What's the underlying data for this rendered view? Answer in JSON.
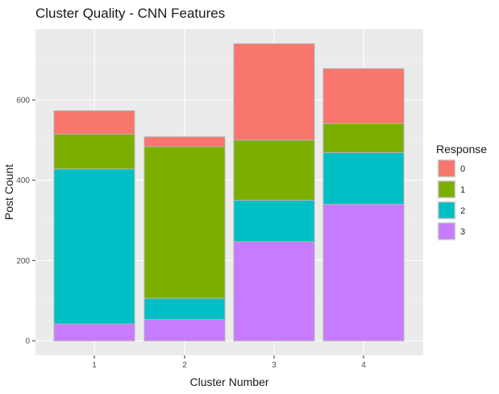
{
  "chart_data": {
    "type": "bar",
    "stacked": true,
    "title": "Cluster Quality - CNN Features",
    "xlabel": "Cluster Number",
    "ylabel": "Post Count",
    "categories": [
      "1",
      "2",
      "3",
      "4"
    ],
    "ylim": [
      0,
      760
    ],
    "yticks": [
      0,
      200,
      400,
      600
    ],
    "grid": true,
    "legend": {
      "title": "Response",
      "placement": "right"
    },
    "series": [
      {
        "name": "3",
        "color": "#C77CFF",
        "values": [
          42,
          53,
          247,
          340
        ]
      },
      {
        "name": "2",
        "color": "#00BFC4",
        "values": [
          386,
          53,
          103,
          129
        ]
      },
      {
        "name": "1",
        "color": "#7CAE00",
        "values": [
          87,
          378,
          150,
          72
        ]
      },
      {
        "name": "0",
        "color": "#F8766D",
        "values": [
          58,
          24,
          240,
          137
        ]
      }
    ],
    "legend_order": [
      "0",
      "1",
      "2",
      "3"
    ]
  }
}
